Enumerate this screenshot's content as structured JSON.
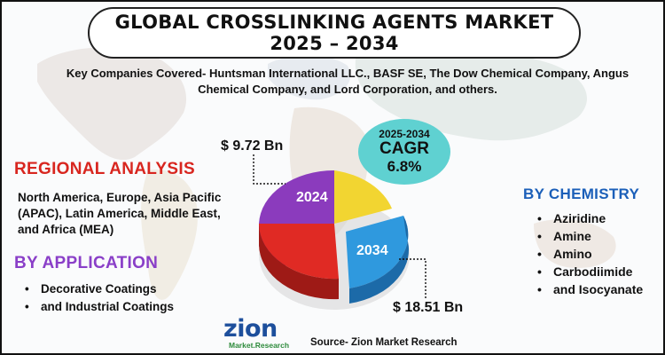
{
  "title": {
    "line1": "GLOBAL CROSSLINKING AGENTS MARKET",
    "line2": "2025 – 2034"
  },
  "companies_text": "Key Companies Covered- Huntsman International LLC., BASF SE, The Dow Chemical Company, Angus Chemical Company, and Lord Corporation, and others.",
  "regional": {
    "heading": "REGIONAL ANALYSIS",
    "text": "North America, Europe, Asia Pacific (APAC), Latin America, Middle East, and Africa (MEA)"
  },
  "application": {
    "heading": "BY APPLICATION",
    "items": [
      "Decorative Coatings",
      "and Industrial Coatings"
    ]
  },
  "chemistry": {
    "heading": "BY CHEMISTRY",
    "items": [
      "Aziridine",
      "Amine",
      "Amino",
      "Carbodiimide",
      "and Isocyanate"
    ]
  },
  "cagr": {
    "period": "2025-2034",
    "label": "CAGR",
    "value": "6.8%"
  },
  "source": "Source- Zion Market Research",
  "logo": {
    "main": "zion",
    "sub": "Market.Research"
  },
  "bullet_glyph": "•",
  "chart_data": {
    "type": "pie",
    "categories": [
      "2024",
      "2034"
    ],
    "values": [
      9.72,
      18.51
    ],
    "value_labels": [
      "$ 9.72 Bn",
      "$ 18.51 Bn"
    ],
    "segment_colors": [
      "#f2d531",
      "#8b3bbd",
      "#e02a24",
      "#2f99de"
    ]
  },
  "colors": {
    "regional_heading": "#d8261f",
    "application_heading": "#8a3fc8",
    "chemistry_heading": "#1b5fb9",
    "cagr_bubble": "#5fd1d1"
  }
}
